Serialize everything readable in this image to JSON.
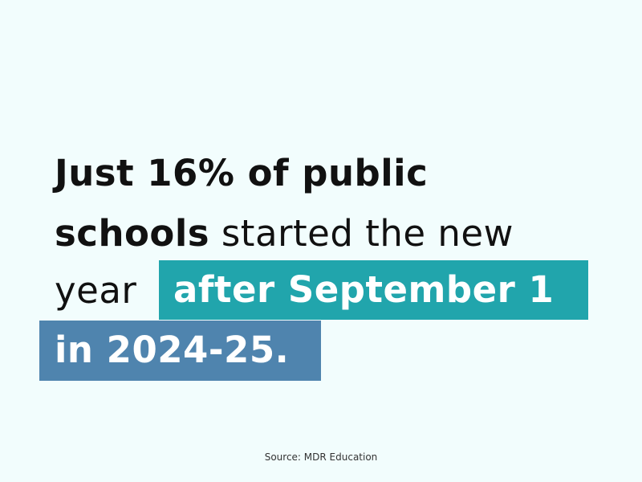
{
  "headline": {
    "line1_bold": "Just 16% of public",
    "line2_bold": "schools",
    "line2_normal": " started the new",
    "line3_normal": "year",
    "highlight1": "after September 1",
    "highlight2": "in 2024-25."
  },
  "colors": {
    "background": "#f2fdfd",
    "highlight1": "#21a5ac",
    "highlight2": "#4f84ae"
  },
  "source": "Source: MDR Education"
}
